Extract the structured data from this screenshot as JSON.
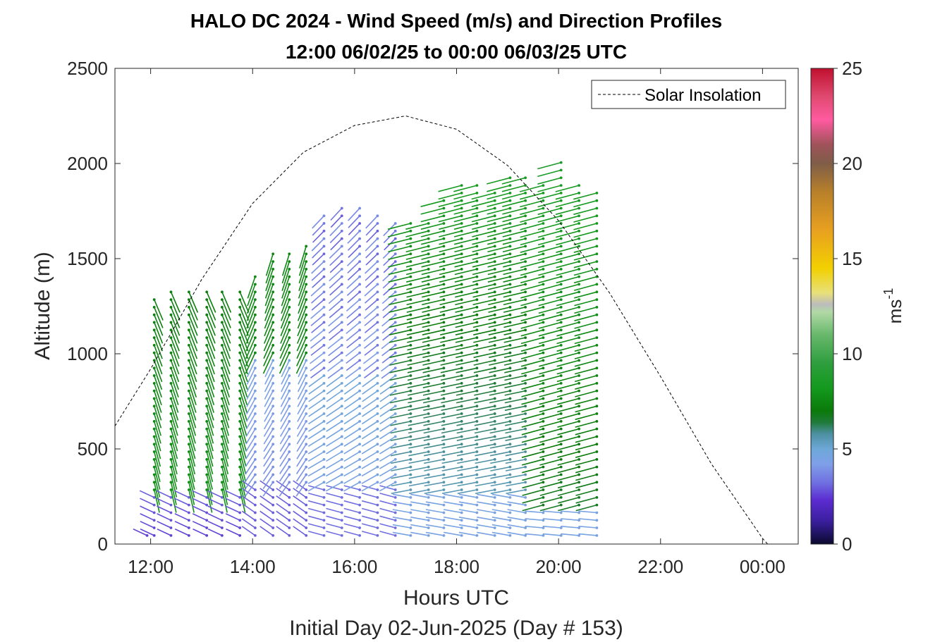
{
  "chart_data": {
    "type": "scatter",
    "title": "HALO DC 2024 - Wind Speed (m/s) and Direction Profiles",
    "subtitle": "12:00 06/02/25 to 00:00 06/03/25  UTC",
    "xlabel": "Hours UTC",
    "xlabel2": "Initial Day 02-Jun-2025 (Day # 153)",
    "ylabel": "Altitude (m)",
    "xlim": [
      11.3,
      24.7
    ],
    "ylim": [
      0,
      2500
    ],
    "x_ticks": [
      12,
      14,
      16,
      18,
      20,
      22,
      24
    ],
    "x_tick_labels": [
      "12:00",
      "14:00",
      "16:00",
      "18:00",
      "20:00",
      "22:00",
      "00:00"
    ],
    "y_ticks": [
      0,
      500,
      1000,
      1500,
      2000,
      2500
    ],
    "y_tick_labels": [
      "0",
      "500",
      "1000",
      "1500",
      "2000",
      "2500"
    ],
    "grid": false,
    "legend": {
      "position": "top-right",
      "entries": [
        {
          "label": "Solar Insolation",
          "style": "dashed",
          "color": "#000000"
        }
      ]
    },
    "colorbar": {
      "label": "ms-1",
      "label_main": "ms",
      "label_sup": "-1",
      "range": [
        0,
        25
      ],
      "ticks": [
        0,
        5,
        10,
        15,
        20,
        25
      ],
      "tick_labels": [
        "0",
        "5",
        "10",
        "15",
        "20",
        "25"
      ],
      "colormap": [
        [
          0,
          "#0a0a2e"
        ],
        [
          1.2,
          "#3a1f9e"
        ],
        [
          2.3,
          "#5b2bd0"
        ],
        [
          3.2,
          "#6f6ee0"
        ],
        [
          4.2,
          "#7f9fe8"
        ],
        [
          5.0,
          "#6da8d8"
        ],
        [
          5.8,
          "#4c8fa0"
        ],
        [
          6.4,
          "#1f7a3a"
        ],
        [
          7.0,
          "#0a7a0a"
        ],
        [
          8.2,
          "#149a1e"
        ],
        [
          9.5,
          "#2e9e3e"
        ],
        [
          11.0,
          "#68b86c"
        ],
        [
          12.2,
          "#b2d9a6"
        ],
        [
          12.6,
          "#bcbcbc"
        ],
        [
          13.2,
          "#e8e07a"
        ],
        [
          14.5,
          "#f2d000"
        ],
        [
          16.5,
          "#e8a020"
        ],
        [
          18.5,
          "#b8802a"
        ],
        [
          20.0,
          "#7f5d48"
        ],
        [
          21.0,
          "#a0525a"
        ],
        [
          22.3,
          "#ff5aa0"
        ],
        [
          23.5,
          "#e04a70"
        ],
        [
          25.0,
          "#c0102e"
        ]
      ]
    },
    "solar_insolation": {
      "label": "Solar Insolation",
      "x": [
        11.3,
        12.0,
        13.0,
        14.0,
        15.0,
        16.0,
        17.0,
        18.0,
        19.0,
        20.0,
        21.0,
        22.0,
        23.0,
        24.0,
        24.1,
        24.7
      ],
      "y": [
        620,
        920,
        1390,
        1790,
        2060,
        2200,
        2250,
        2180,
        1990,
        1700,
        1320,
        880,
        420,
        30,
        0,
        0
      ]
    },
    "profiles": [
      {
        "time": 11.93,
        "top": 60,
        "mode": 1
      },
      {
        "time": 12.07,
        "top": 1300,
        "mode": 1
      },
      {
        "time": 12.4,
        "top": 1330,
        "mode": 1
      },
      {
        "time": 12.75,
        "top": 1350,
        "mode": 1
      },
      {
        "time": 13.1,
        "top": 1360,
        "mode": 1
      },
      {
        "time": 13.4,
        "top": 1340,
        "mode": 1
      },
      {
        "time": 13.75,
        "top": 1330,
        "mode": 1
      },
      {
        "time": 14.05,
        "top": 1420,
        "mode": 2
      },
      {
        "time": 14.4,
        "top": 1540,
        "mode": 2
      },
      {
        "time": 14.72,
        "top": 1530,
        "mode": 2
      },
      {
        "time": 15.05,
        "top": 1600,
        "mode": 2
      },
      {
        "time": 15.4,
        "top": 1730,
        "mode": 3
      },
      {
        "time": 15.75,
        "top": 1780,
        "mode": 3
      },
      {
        "time": 16.1,
        "top": 1790,
        "mode": 3
      },
      {
        "time": 16.45,
        "top": 1750,
        "mode": 3
      },
      {
        "time": 16.8,
        "top": 1720,
        "mode": 3
      },
      {
        "time": 17.1,
        "top": 1700,
        "mode": 4
      },
      {
        "time": 17.45,
        "top": 1710,
        "mode": 4
      },
      {
        "time": 17.75,
        "top": 1830,
        "mode": 4
      },
      {
        "time": 18.1,
        "top": 1900,
        "mode": 4
      },
      {
        "time": 18.4,
        "top": 1900,
        "mode": 4
      },
      {
        "time": 18.75,
        "top": 1880,
        "mode": 4
      },
      {
        "time": 19.05,
        "top": 1960,
        "mode": 4
      },
      {
        "time": 19.35,
        "top": 1940,
        "mode": 4
      },
      {
        "time": 19.7,
        "top": 1920,
        "mode": 5
      },
      {
        "time": 20.05,
        "top": 2040,
        "mode": 5
      },
      {
        "time": 20.4,
        "top": 1900,
        "mode": 5
      },
      {
        "time": 20.75,
        "top": 1870,
        "mode": 5
      }
    ]
  }
}
